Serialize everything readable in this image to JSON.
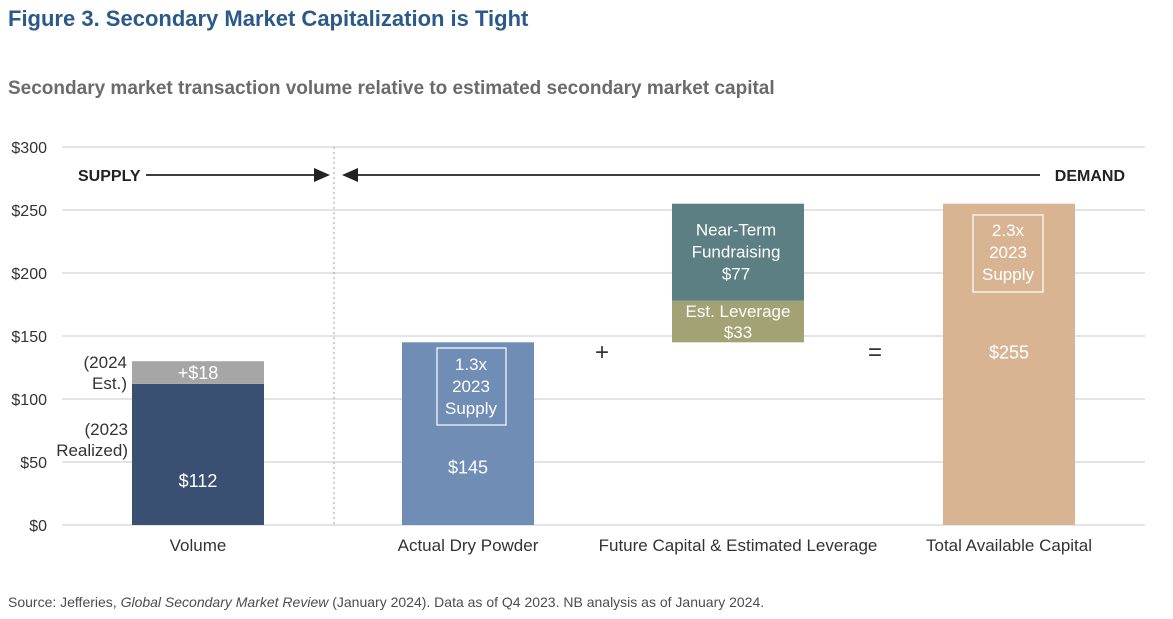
{
  "figure_title": "Figure 3. Secondary Market Capitalization is Tight",
  "subtitle": "Secondary market transaction volume relative to estimated secondary market capital",
  "source": {
    "prefix": "Source: Jefferies, ",
    "italic": "Global Secondary Market Review",
    "suffix": " (January 2024). Data as of Q4 2023. NB analysis as of January 2024."
  },
  "colors": {
    "volume_2023": "#3a5073",
    "volume_2024": "#a6a6a6",
    "dry_powder": "#6f8db5",
    "leverage": "#a3a275",
    "fundraising": "#5c7f84",
    "total": "#d9b492",
    "gridline": "#c8c8c8",
    "axis_text": "#333333",
    "title_blue": "#2b5a8a"
  },
  "chart_data": {
    "type": "bar",
    "title": "",
    "xlabel": "",
    "ylabel": "",
    "ylim": [
      0,
      300
    ],
    "y_ticks": [
      "$0",
      "$50",
      "$100",
      "$150",
      "$200",
      "$250",
      "$300"
    ],
    "y_tick_values": [
      0,
      50,
      100,
      150,
      200,
      250,
      300
    ],
    "grid": true,
    "categories": [
      "Volume",
      "Actual Dry Powder",
      "Future Capital & Estimated Leverage",
      "Total Available Capital"
    ],
    "segments": [
      {
        "category": "Volume",
        "name": "2023 Realized",
        "base": 0,
        "value": 112,
        "label": "$112",
        "side_label": "(2023\nRealized)",
        "color_key": "volume_2023"
      },
      {
        "category": "Volume",
        "name": "2024 Est.",
        "base": 112,
        "value": 18,
        "label": "+$18",
        "side_label": "(2024\nEst.)",
        "color_key": "volume_2024"
      },
      {
        "category": "Actual Dry Powder",
        "name": "Actual Dry Powder",
        "base": 0,
        "value": 145,
        "label": "$145",
        "color_key": "dry_powder"
      },
      {
        "category": "Future Capital & Estimated Leverage",
        "name": "Est. Leverage",
        "base": 145,
        "value": 33,
        "label": "Est. Leverage\n$33",
        "color_key": "leverage"
      },
      {
        "category": "Future Capital & Estimated Leverage",
        "name": "Near-Term Fundraising",
        "base": 178,
        "value": 77,
        "label": "Near-Term\nFundraising\n$77",
        "color_key": "fundraising"
      },
      {
        "category": "Total Available Capital",
        "name": "Total Available Capital",
        "base": 0,
        "value": 255,
        "label": "$255",
        "color_key": "total"
      }
    ],
    "annotations": {
      "supply": "SUPPLY",
      "demand": "DEMAND",
      "plus": "+",
      "equals": "=",
      "dry_powder_multiple": "1.3x\n2023\nSupply",
      "total_multiple": "2.3x\n2023\nSupply"
    }
  }
}
